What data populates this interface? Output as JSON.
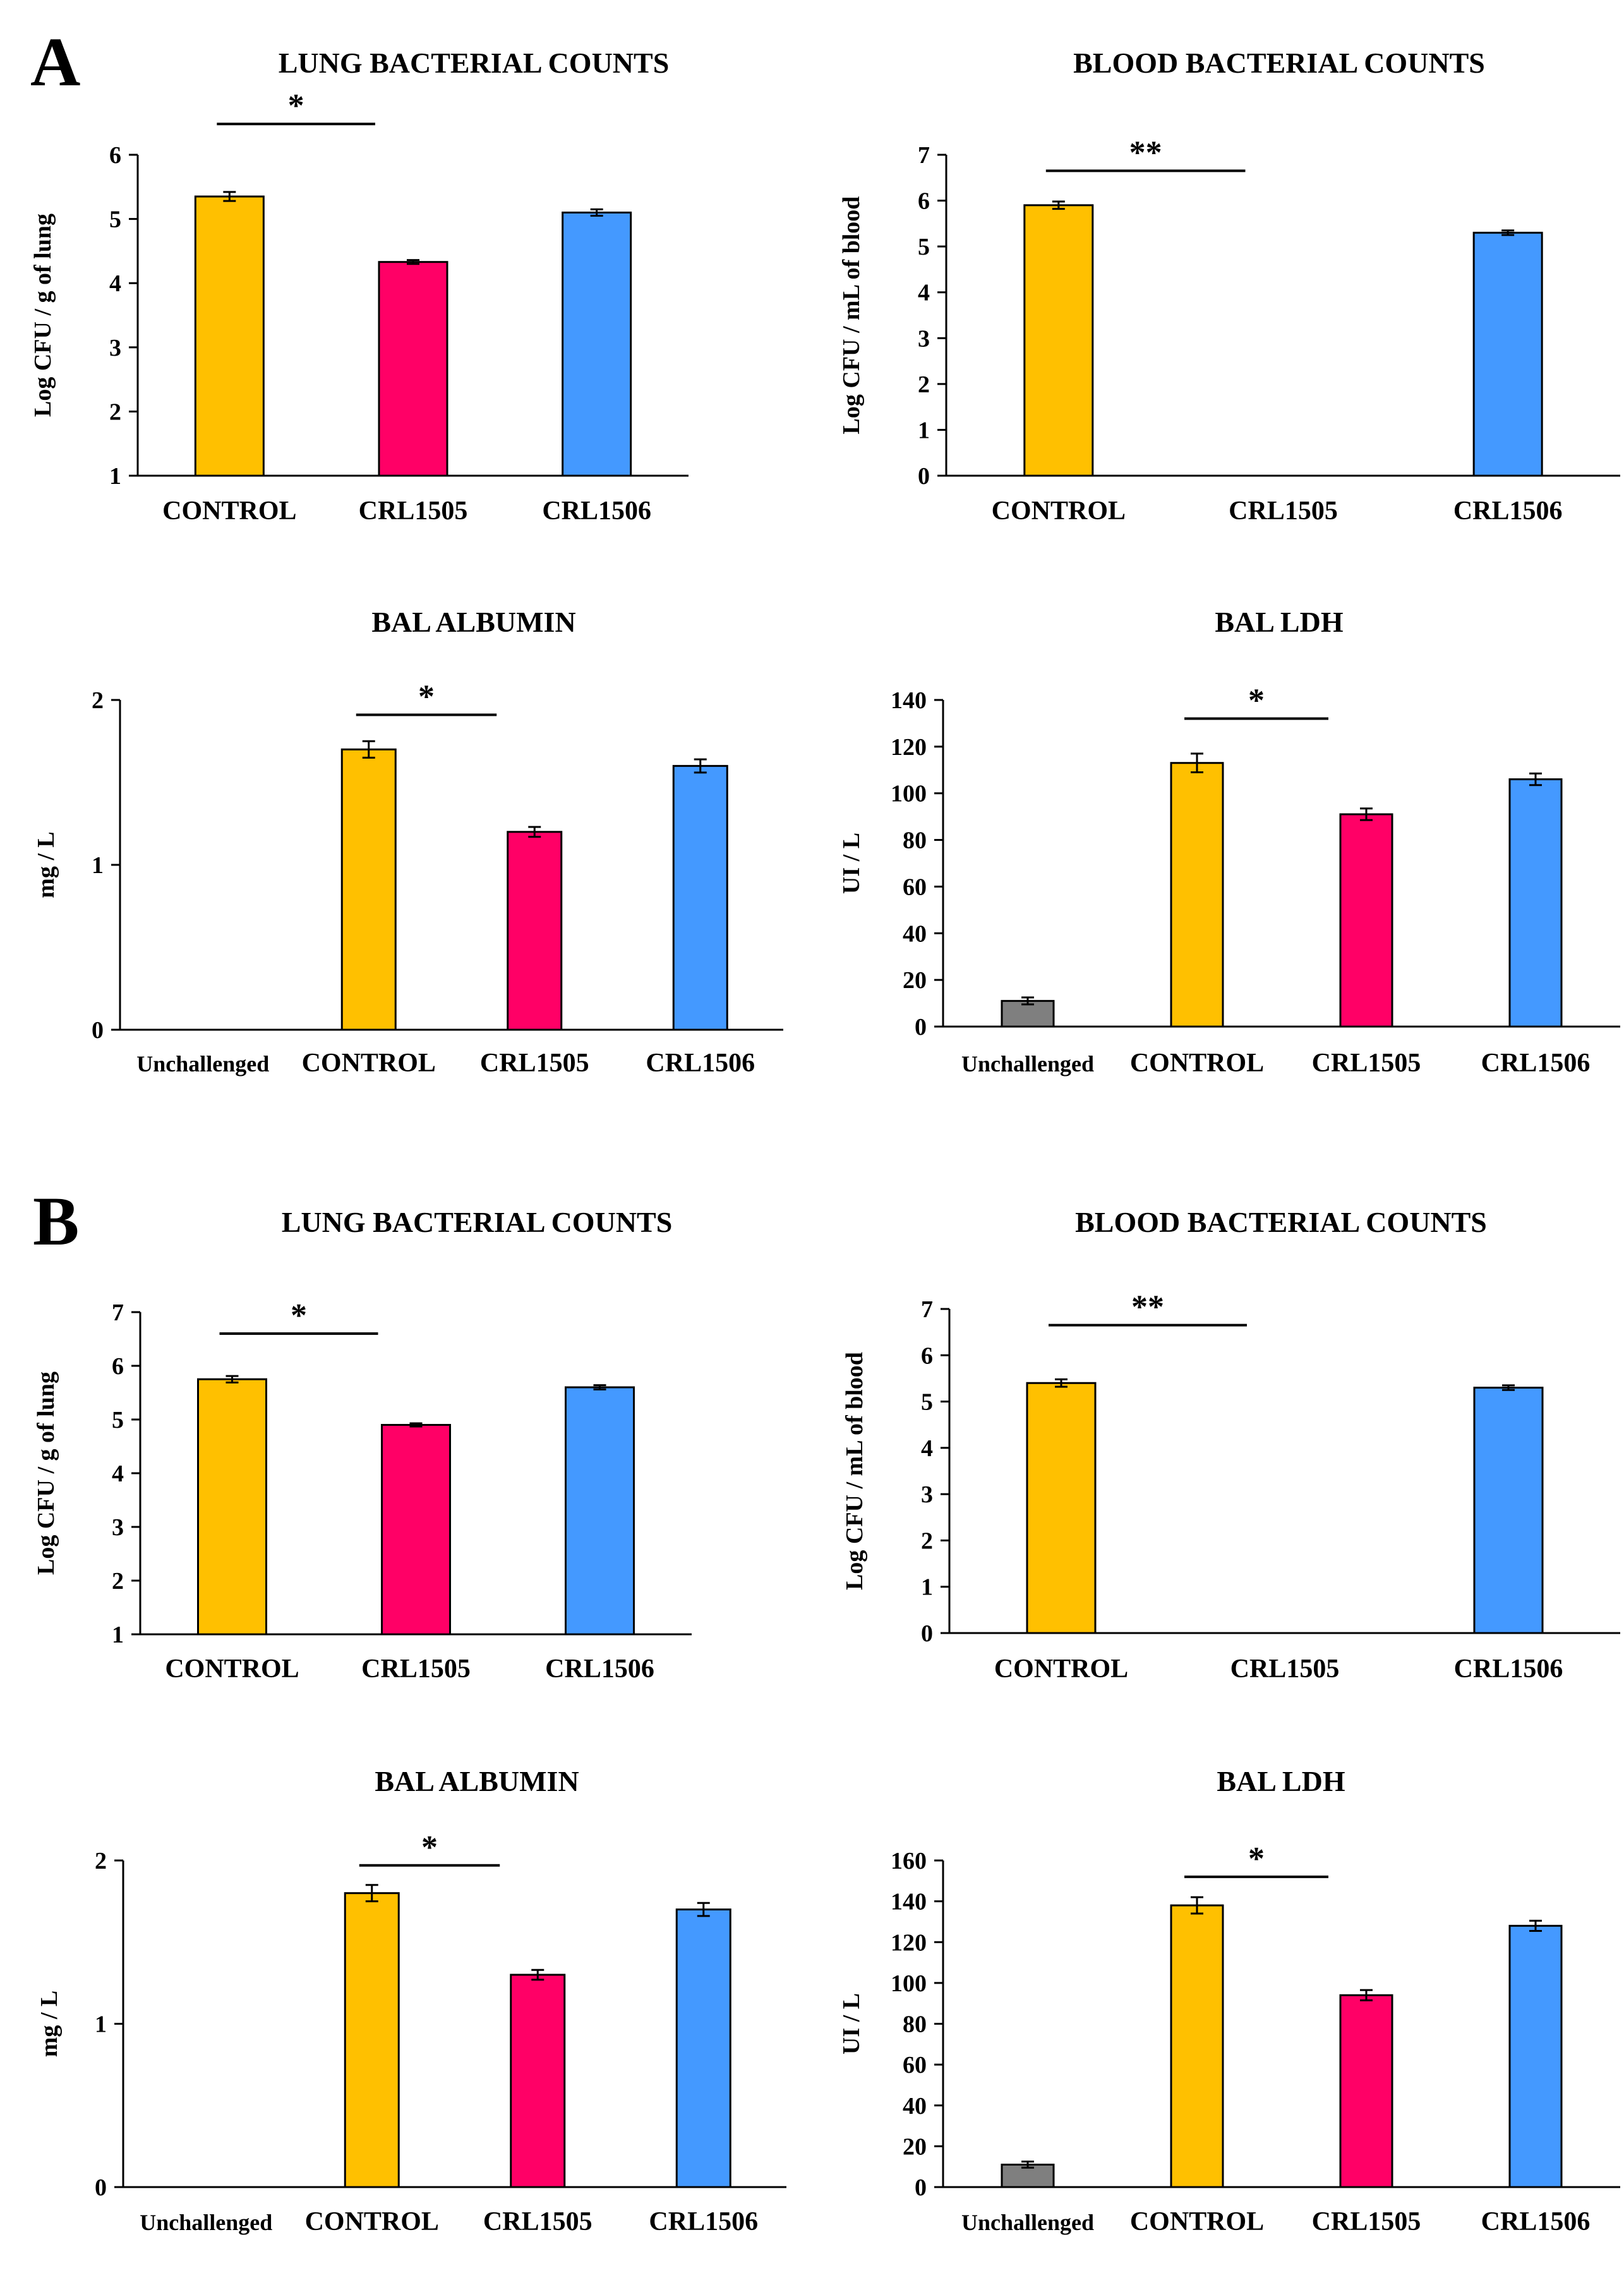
{
  "chart_data": [
    {
      "type": "bar",
      "panel": "A",
      "title": "LUNG BACTERIAL COUNTS",
      "ylabel": "Log CFU / g of lung",
      "categories": [
        "CONTROL",
        "CRL1505",
        "CRL1506"
      ],
      "values": [
        5.35,
        4.33,
        5.1
      ],
      "errors": [
        0.07,
        0.03,
        0.05
      ],
      "ylim": [
        1,
        6
      ],
      "yticks": [
        1,
        2,
        3,
        4,
        5,
        6
      ],
      "significance": [
        {
          "from": "CONTROL",
          "to": "CRL1505",
          "label": "*",
          "level": 6.48
        }
      ]
    },
    {
      "type": "bar",
      "panel": "A",
      "title": "BLOOD BACTERIAL COUNTS",
      "ylabel": "Log CFU / mL of blood",
      "categories": [
        "CONTROL",
        "CRL1505",
        "CRL1506"
      ],
      "values": [
        5.9,
        0,
        5.3
      ],
      "errors": [
        0.08,
        0,
        0.05
      ],
      "ylim": [
        0,
        7
      ],
      "yticks": [
        0,
        1,
        2,
        3,
        4,
        5,
        6,
        7
      ],
      "significance": [
        {
          "from": "CONTROL",
          "to": "CRL1505",
          "label": "**",
          "level": 6.65
        }
      ]
    },
    {
      "type": "bar",
      "panel": "A",
      "title": "BAL ALBUMIN",
      "ylabel": "mg / L",
      "categories": [
        "Unchallenged",
        "CONTROL",
        "CRL1505",
        "CRL1506"
      ],
      "values": [
        0,
        1.7,
        1.2,
        1.6
      ],
      "errors": [
        0,
        0.05,
        0.03,
        0.04
      ],
      "ylim": [
        0,
        2
      ],
      "yticks": [
        0,
        1,
        2
      ],
      "significance": [
        {
          "from": "CONTROL",
          "to": "CRL1505",
          "label": "*",
          "level": 1.91
        }
      ]
    },
    {
      "type": "bar",
      "panel": "A",
      "title": "BAL LDH",
      "ylabel": "UI / L",
      "categories": [
        "Unchallenged",
        "CONTROL",
        "CRL1505",
        "CRL1506"
      ],
      "values": [
        11,
        113,
        91,
        106
      ],
      "errors": [
        1.5,
        4,
        2.5,
        2.5
      ],
      "ylim": [
        0,
        140
      ],
      "yticks": [
        0,
        20,
        40,
        60,
        80,
        100,
        120,
        140
      ],
      "significance": [
        {
          "from": "CONTROL",
          "to": "CRL1505",
          "label": "*",
          "level": 132
        }
      ]
    },
    {
      "type": "bar",
      "panel": "B",
      "title": "LUNG BACTERIAL COUNTS",
      "ylabel": "Log CFU / g of lung",
      "categories": [
        "CONTROL",
        "CRL1505",
        "CRL1506"
      ],
      "values": [
        5.75,
        4.9,
        5.6
      ],
      "errors": [
        0.06,
        0.03,
        0.04
      ],
      "ylim": [
        1,
        7
      ],
      "yticks": [
        1,
        2,
        3,
        4,
        5,
        6,
        7
      ],
      "significance": [
        {
          "from": "CONTROL",
          "to": "CRL1505",
          "label": "*",
          "level": 6.6
        }
      ]
    },
    {
      "type": "bar",
      "panel": "B",
      "title": "BLOOD BACTERIAL COUNTS",
      "ylabel": "Log CFU / mL of blood",
      "categories": [
        "CONTROL",
        "CRL1505",
        "CRL1506"
      ],
      "values": [
        5.4,
        0,
        5.3
      ],
      "errors": [
        0.08,
        0,
        0.05
      ],
      "ylim": [
        0,
        7
      ],
      "yticks": [
        0,
        1,
        2,
        3,
        4,
        5,
        6,
        7
      ],
      "significance": [
        {
          "from": "CONTROL",
          "to": "CRL1505",
          "label": "**",
          "level": 6.65
        }
      ]
    },
    {
      "type": "bar",
      "panel": "B",
      "title": "BAL ALBUMIN",
      "ylabel": "mg / L",
      "categories": [
        "Unchallenged",
        "CONTROL",
        "CRL1505",
        "CRL1506"
      ],
      "values": [
        0,
        1.8,
        1.3,
        1.7
      ],
      "errors": [
        0,
        0.05,
        0.03,
        0.04
      ],
      "ylim": [
        0,
        2
      ],
      "yticks": [
        0,
        1,
        2
      ],
      "significance": [
        {
          "from": "CONTROL",
          "to": "CRL1505",
          "label": "*",
          "level": 1.97
        }
      ]
    },
    {
      "type": "bar",
      "panel": "B",
      "title": "BAL LDH",
      "ylabel": "UI / L",
      "categories": [
        "Unchallenged",
        "CONTROL",
        "CRL1505",
        "CRL1506"
      ],
      "values": [
        11,
        138,
        94,
        128
      ],
      "errors": [
        1.5,
        4,
        2.5,
        2.5
      ],
      "ylim": [
        0,
        160
      ],
      "yticks": [
        0,
        20,
        40,
        60,
        80,
        100,
        120,
        140,
        160
      ],
      "significance": [
        {
          "from": "CONTROL",
          "to": "CRL1505",
          "label": "*",
          "level": 152
        }
      ]
    }
  ],
  "panel_labels": [
    "A",
    "B"
  ],
  "colors": {
    "Unchallenged": "#7f7f7f",
    "CONTROL": "#ffc000",
    "CRL1505": "#ff0066",
    "CRL1506": "#4499ff",
    "axis": "#000000"
  }
}
